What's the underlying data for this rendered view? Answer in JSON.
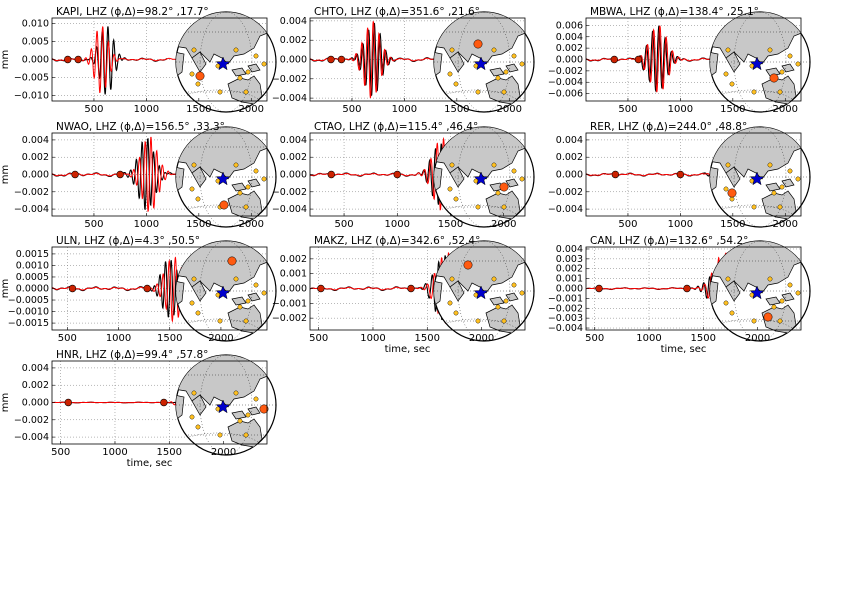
{
  "colors": {
    "observed": "#000000",
    "synthetic": "#ff0000",
    "land": "#c8c8c8",
    "marker_dot": "#cc2200",
    "event_star": "#0000cc",
    "station_other": "#ffc020",
    "station_current": "#ff5a10"
  },
  "icons": {
    "event": "star-icon",
    "station": "circle-icon"
  },
  "chart_data": [
    {
      "type": "line",
      "title": "KAPI, LHZ (ϕ,Δ)=98.2° ,17.7°",
      "ylabel": "mm",
      "xlabel": "",
      "xlim": [
        100,
        2150
      ],
      "ylim": [
        -0.0115,
        0.0115
      ],
      "xticks": [
        "500",
        "1000",
        "1500",
        "2000"
      ],
      "xtick_values": [
        500,
        1000,
        1500,
        2000
      ],
      "yticks": [
        "−0.010",
        "−0.005",
        "0.000",
        "0.005",
        "0.010"
      ],
      "ytick_values": [
        -0.01,
        -0.005,
        0,
        0.005,
        0.01
      ],
      "obs_end": 1200,
      "markers": [
        250,
        350
      ],
      "pulse": {
        "t": 620,
        "amp": 0.0098,
        "per": 55,
        "ns": 2.5,
        "decay": 900
      },
      "synthetic_pulse": {
        "t": 570,
        "amp": 0.0095,
        "per": 55,
        "ns": 2.5,
        "decay": 900
      },
      "globe": {
        "station": "SW"
      }
    },
    {
      "type": "line",
      "title": "CHTO, LHZ (ϕ,Δ)=351.6° ,21.6°",
      "ylabel": "",
      "xlabel": "",
      "xlim": [
        100,
        2150
      ],
      "ylim": [
        -0.0043,
        0.0043
      ],
      "xticks": [
        "500",
        "1000",
        "1500",
        "2000"
      ],
      "xtick_values": [
        500,
        1000,
        1500,
        2000
      ],
      "yticks": [
        "−0.004",
        "−0.002",
        "0.000",
        "0.002",
        "0.004"
      ],
      "ytick_values": [
        -0.004,
        -0.002,
        0,
        0.002,
        0.004
      ],
      "obs_end": 1350,
      "markers": [
        300,
        400
      ],
      "pulse": {
        "t": 700,
        "amp": 0.0038,
        "per": 55,
        "ns": 3,
        "decay": 900
      },
      "synthetic_pulse": {
        "t": 690,
        "amp": 0.004,
        "per": 55,
        "ns": 3,
        "decay": 900
      },
      "globe": {
        "station": "NNW"
      }
    },
    {
      "type": "line",
      "title": "MBWA, LHZ (ϕ,Δ)=138.4° ,25.1°",
      "ylabel": "",
      "xlabel": "",
      "xlim": [
        100,
        2150
      ],
      "ylim": [
        -0.0073,
        0.0073
      ],
      "xticks": [
        "500",
        "1000",
        "1500",
        "2000"
      ],
      "xtick_values": [
        500,
        1000,
        1500,
        2000
      ],
      "yticks": [
        "−0.006",
        "−0.004",
        "−0.002",
        "0.000",
        "0.002",
        "0.004",
        "0.006"
      ],
      "ytick_values": [
        -0.006,
        -0.004,
        -0.002,
        0,
        0.002,
        0.004,
        0.006
      ],
      "obs_end": 1700,
      "markers": [
        370,
        600
      ],
      "pulse": {
        "t": 780,
        "amp": 0.0058,
        "per": 60,
        "ns": 3,
        "decay": 900
      },
      "synthetic_pulse": {
        "t": 790,
        "amp": 0.006,
        "per": 60,
        "ns": 3,
        "decay": 900
      },
      "globe": {
        "station": "SE"
      }
    },
    {
      "type": "line",
      "title": "NWAO, LHZ (ϕ,Δ)=156.5° ,33.3°",
      "ylabel": "mm",
      "xlabel": "",
      "xlim": [
        100,
        2150
      ],
      "ylim": [
        -0.0048,
        0.0048
      ],
      "xticks": [
        "500",
        "1000",
        "1500",
        "2000"
      ],
      "xtick_values": [
        500,
        1000,
        1500,
        2000
      ],
      "yticks": [
        "−0.004",
        "−0.002",
        "0.000",
        "0.002",
        "0.004"
      ],
      "ytick_values": [
        -0.004,
        -0.002,
        0,
        0.002,
        0.004
      ],
      "obs_end": 2000,
      "markers": [
        320,
        750
      ],
      "pulse": {
        "t": 1000,
        "amp": 0.0042,
        "per": 55,
        "ns": 3,
        "decay": 900
      },
      "synthetic_pulse": {
        "t": 1030,
        "amp": 0.0044,
        "per": 55,
        "ns": 3,
        "decay": 900
      },
      "globe": {
        "station": "S"
      }
    },
    {
      "type": "line",
      "title": "CTAO, LHZ (ϕ,Δ)=115.4° ,46.4°",
      "ylabel": "",
      "xlabel": "",
      "xlim": [
        180,
        2200
      ],
      "ylim": [
        -0.0048,
        0.0048
      ],
      "xticks": [
        "500",
        "1000",
        "1500",
        "2000"
      ],
      "xtick_values": [
        500,
        1000,
        1500,
        2000
      ],
      "yticks": [
        "−0.004",
        "−0.002",
        "0.000",
        "0.002",
        "0.004"
      ],
      "ytick_values": [
        -0.004,
        -0.002,
        0,
        0.002,
        0.004
      ],
      "obs_end": 1950,
      "markers": [
        380,
        1000
      ],
      "pulse": {
        "t": 1400,
        "amp": 0.0036,
        "per": 55,
        "ns": 3,
        "decay": 900
      },
      "synthetic_pulse": {
        "t": 1420,
        "amp": 0.0042,
        "per": 60,
        "ns": 3,
        "decay": 900
      },
      "globe": {
        "station": "ESE"
      }
    },
    {
      "type": "line",
      "title": "RER, LHZ (ϕ,Δ)=244.0° ,48.8°",
      "ylabel": "",
      "xlabel": "",
      "xlim": [
        100,
        2150
      ],
      "ylim": [
        -0.0048,
        0.0048
      ],
      "xticks": [
        "500",
        "1000",
        "1500",
        "2000"
      ],
      "xtick_values": [
        500,
        1000,
        1500,
        2000
      ],
      "yticks": [
        "−0.004",
        "−0.002",
        "0.000",
        "0.002",
        "0.004"
      ],
      "ytick_values": [
        -0.004,
        -0.002,
        0,
        0.002,
        0.004
      ],
      "obs_end": 1800,
      "markers": [
        380,
        1000
      ],
      "pulse": {
        "t": 1460,
        "amp": 0.0032,
        "per": 60,
        "ns": 3,
        "decay": 900
      },
      "synthetic_pulse": {
        "t": 1500,
        "amp": 0.004,
        "per": 65,
        "ns": 3,
        "decay": 900
      },
      "globe": {
        "station": "WSW"
      }
    },
    {
      "type": "line",
      "title": "ULN, LHZ (ϕ,Δ)=4.3° ,50.5°",
      "ylabel": "mm",
      "xlabel": "",
      "xlim": [
        350,
        2450
      ],
      "ylim": [
        -0.0018,
        0.0018
      ],
      "xticks": [
        "500",
        "1000",
        "1500",
        "2000"
      ],
      "xtick_values": [
        500,
        1000,
        1500,
        2000
      ],
      "yticks": [
        "−0.0015",
        "−0.0010",
        "−0.0005",
        "0.0000",
        "0.0005",
        "0.0010",
        "0.0015"
      ],
      "ytick_values": [
        -0.0015,
        -0.001,
        -0.0005,
        0,
        0.0005,
        0.001,
        0.0015
      ],
      "obs_end": 1800,
      "markers": [
        550,
        1280
      ],
      "pulse": {
        "t": 1500,
        "amp": 0.0013,
        "per": 55,
        "ns": 3,
        "decay": 900
      },
      "synthetic_pulse": {
        "t": 1540,
        "amp": 0.0014,
        "per": 60,
        "ns": 3,
        "decay": 900
      },
      "globe": {
        "station": "N"
      }
    },
    {
      "type": "line",
      "title": "MAKZ, LHZ (ϕ,Δ)=342.6° ,52.4°",
      "ylabel": "",
      "xlabel": "time, sec",
      "xlim": [
        420,
        2400
      ],
      "ylim": [
        -0.0028,
        0.0028
      ],
      "xticks": [
        "500",
        "1000",
        "1500",
        "2000"
      ],
      "xtick_values": [
        500,
        1000,
        1500,
        2000
      ],
      "yticks": [
        "−0.002",
        "−0.001",
        "0.000",
        "0.001",
        "0.002"
      ],
      "ytick_values": [
        -0.002,
        -0.001,
        0,
        0.001,
        0.002
      ],
      "obs_end": 1900,
      "markers": [
        520,
        1350
      ],
      "pulse": {
        "t": 1650,
        "amp": 0.0022,
        "per": 60,
        "ns": 3,
        "decay": 900
      },
      "synthetic_pulse": {
        "t": 1680,
        "amp": 0.0024,
        "per": 65,
        "ns": 3,
        "decay": 900
      },
      "globe": {
        "station": "NW"
      }
    },
    {
      "type": "line",
      "title": "CAN, LHZ (ϕ,Δ)=132.6° ,54.2°",
      "ylabel": "",
      "xlabel": "time, sec",
      "xlim": [
        420,
        2400
      ],
      "ylim": [
        -0.0042,
        0.0042
      ],
      "xticks": [
        "500",
        "1000",
        "1500",
        "2000"
      ],
      "xtick_values": [
        500,
        1000,
        1500,
        2000
      ],
      "yticks": [
        "−0.004",
        "−0.003",
        "−0.002",
        "−0.001",
        "0.000",
        "0.001",
        "0.002",
        "0.003",
        "0.004"
      ],
      "ytick_values": [
        -0.004,
        -0.003,
        -0.002,
        -0.001,
        0,
        0.001,
        0.002,
        0.003,
        0.004
      ],
      "obs_end": 1900,
      "markers": [
        540,
        1350
      ],
      "pulse": {
        "t": 1600,
        "amp": 0.0014,
        "per": 55,
        "ns": 3,
        "decay": 900
      },
      "synthetic_pulse": {
        "t": 1690,
        "amp": 0.0036,
        "per": 65,
        "ns": 3,
        "decay": 900
      },
      "globe": {
        "station": "SSE"
      }
    },
    {
      "type": "line",
      "title": "HNR, LHZ (ϕ,Δ)=99.4° ,57.8°",
      "ylabel": "mm",
      "xlabel": "time, sec",
      "xlim": [
        420,
        2400
      ],
      "ylim": [
        -0.0048,
        0.0048
      ],
      "xticks": [
        "500",
        "1000",
        "1500",
        "2000"
      ],
      "xtick_values": [
        500,
        1000,
        1500,
        2000
      ],
      "yticks": [
        "−0.004",
        "−0.002",
        "0.000",
        "0.002",
        "0.004"
      ],
      "ytick_values": [
        -0.004,
        -0.002,
        0,
        0.002,
        0.004
      ],
      "obs_end": 1900,
      "markers": [
        570,
        1450
      ],
      "pulse": {
        "t": 1700,
        "amp": 0.0002,
        "per": 55,
        "ns": 3,
        "decay": 900
      },
      "synthetic_pulse": {
        "t": 1740,
        "amp": 0.0042,
        "per": 60,
        "ns": 3,
        "decay": 900
      },
      "globe": {
        "station": "E"
      }
    }
  ]
}
